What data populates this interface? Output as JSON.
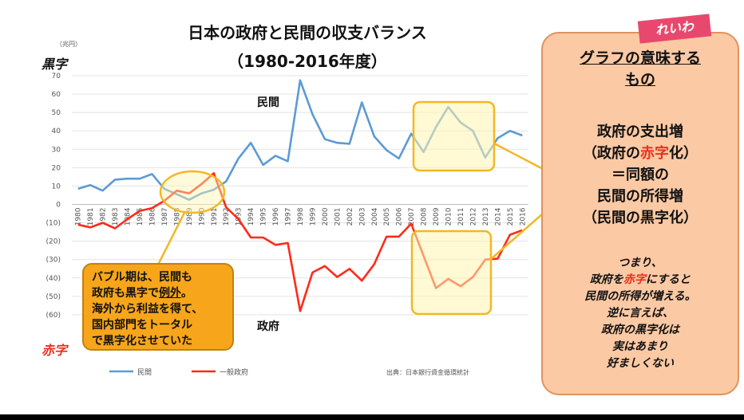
{
  "chart_data": {
    "type": "line",
    "title": "日本の政府と民間の収支バランス",
    "subtitle": "（1980-2016年度）",
    "unit": "（兆円）",
    "ylim": [
      -70,
      70
    ],
    "ytick_labels": [
      "70",
      "60",
      "50",
      "40",
      "30",
      "20",
      "10",
      "0",
      "(10)",
      "(20)",
      "(30)",
      "(40)",
      "(50)",
      "(60)"
    ],
    "x": [
      1980,
      1981,
      1982,
      1983,
      1984,
      1985,
      1986,
      1987,
      1988,
      1989,
      1990,
      1991,
      1992,
      1993,
      1994,
      1995,
      1996,
      1997,
      1998,
      1999,
      2000,
      2001,
      2002,
      2003,
      2004,
      2005,
      2006,
      2007,
      2008,
      2009,
      2010,
      2011,
      2012,
      2013,
      2014,
      2015,
      2016
    ],
    "series": [
      {
        "name": "民間",
        "color": "#5b9bd5",
        "values": [
          8.5,
          10.5,
          7.5,
          13.5,
          14,
          14,
          16.5,
          8.5,
          5.5,
          2.5,
          6,
          8,
          12.5,
          25,
          33.5,
          21.5,
          26.5,
          23.5,
          67.5,
          49,
          35.5,
          33.5,
          33,
          55.5,
          37,
          29.5,
          25,
          38.5,
          28.5,
          42,
          53,
          44.5,
          40,
          25.5,
          36,
          40,
          37.5
        ]
      },
      {
        "name": "一般政府",
        "color": "#ff2a1a",
        "values": [
          -11,
          -12.5,
          -10,
          -13,
          -8,
          -3.5,
          -2,
          2,
          7.5,
          6,
          11,
          17,
          -1.5,
          -8,
          -18,
          -18,
          -22,
          -21,
          -58,
          -37,
          -33.5,
          -39.5,
          -35,
          -41.5,
          -32.5,
          -17.5,
          -17.5,
          -10.5,
          -28,
          -45.5,
          -40.5,
          -44.5,
          -39.5,
          -30,
          -29.5,
          -16.5,
          -14
        ]
      }
    ],
    "annotations": {
      "private_label": "民間",
      "gov_label": "政府",
      "surplus": "黒字",
      "deficit": "赤字"
    },
    "source": "出典：日本銀行資金循環統計",
    "grid": true,
    "legend_position": "bottom"
  },
  "callout": {
    "text_a": "バブル期は、民間も\n政府も黒字で",
    "text_b": "例外",
    "text_c": "。\n海外から利益を得て、\n国内部門をトータル\nで黒字化させていた"
  },
  "panel": {
    "title": "グラフの意味する\nもの",
    "line1": "政府の支出増",
    "line2_a": "（政府の",
    "line2_red": "赤字",
    "line2_b": "化）",
    "line3": "＝同額の",
    "line4": "民間の所得増",
    "line5": "（民間の黒字化）",
    "b1": "つまり、",
    "b2_a": "政府を",
    "b2_red": "赤字",
    "b2_b": "にすると",
    "b3": "民間の所得が増える。",
    "b4": "逆に言えば、",
    "b5": "政府の黒字化は",
    "b6": "実はあまり",
    "b7": "好ましくない"
  },
  "logo_text": "れいわ"
}
